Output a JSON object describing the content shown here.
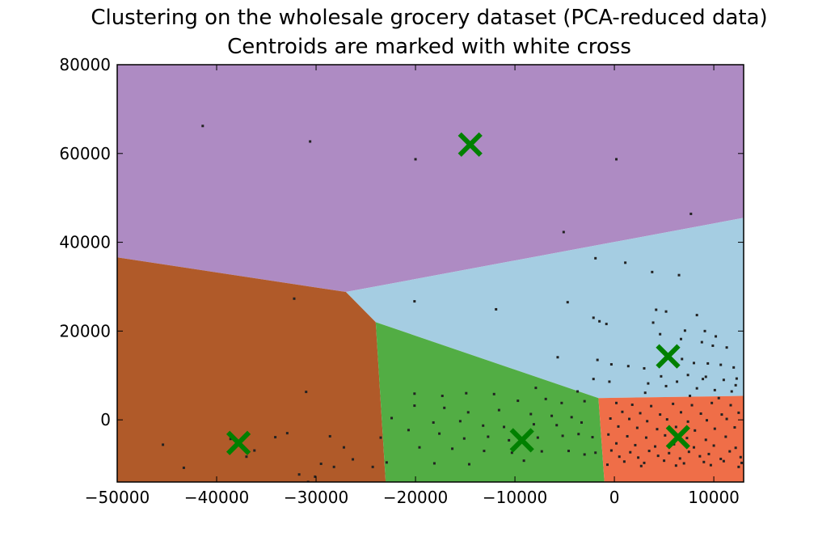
{
  "chart_data": {
    "type": "scatter",
    "title": "Clustering on the wholesale grocery dataset (PCA-reduced data)",
    "subtitle": "Centroids are marked with white cross",
    "xlabel": "",
    "ylabel": "",
    "xlim": [
      -50000,
      13000
    ],
    "ylim": [
      -14000,
      80000
    ],
    "xticks": [
      -50000,
      -40000,
      -30000,
      -20000,
      -10000,
      0,
      10000
    ],
    "yticks": [
      0,
      20000,
      40000,
      60000,
      80000
    ],
    "grid": false,
    "legend": "none",
    "regions": [
      {
        "color": "#ae8bc3",
        "polygon": [
          [
            -50000,
            80000
          ],
          [
            13000,
            80000
          ],
          [
            13000,
            45500
          ],
          [
            -27000,
            28800
          ],
          [
            -50000,
            36600
          ]
        ]
      },
      {
        "color": "#a5cde2",
        "polygon": [
          [
            -27000,
            28800
          ],
          [
            13000,
            45500
          ],
          [
            13000,
            5400
          ],
          [
            -1600,
            4900
          ],
          [
            -24000,
            22000
          ]
        ]
      },
      {
        "color": "#b05a29",
        "polygon": [
          [
            -50000,
            36600
          ],
          [
            -27000,
            28800
          ],
          [
            -24000,
            22000
          ],
          [
            -23000,
            -14000
          ],
          [
            -50000,
            -14000
          ]
        ]
      },
      {
        "color": "#52ad44",
        "polygon": [
          [
            -24000,
            22000
          ],
          [
            -1600,
            4900
          ],
          [
            -1000,
            -14000
          ],
          [
            -23000,
            -14000
          ]
        ]
      },
      {
        "color": "#ef6e48",
        "polygon": [
          [
            -1600,
            4900
          ],
          [
            13000,
            5400
          ],
          [
            13000,
            -14000
          ],
          [
            -1000,
            -14000
          ]
        ]
      }
    ],
    "centroids": {
      "color": "#008000",
      "points": [
        [
          -14500,
          62000
        ],
        [
          -37800,
          -5200
        ],
        [
          -9300,
          -4600
        ],
        [
          5400,
          14300
        ],
        [
          6400,
          -3900
        ]
      ]
    },
    "points": [
      [
        -41400,
        66200
      ],
      [
        -30600,
        62700
      ],
      [
        -20000,
        58700
      ],
      [
        200,
        58700
      ],
      [
        7700,
        46400
      ],
      [
        -5100,
        42300
      ],
      [
        -1900,
        36400
      ],
      [
        1100,
        35400
      ],
      [
        3800,
        33300
      ],
      [
        6500,
        32600
      ],
      [
        -32200,
        27300
      ],
      [
        -20100,
        26700
      ],
      [
        -4700,
        26500
      ],
      [
        -11900,
        24900
      ],
      [
        4200,
        24800
      ],
      [
        5200,
        24400
      ],
      [
        8300,
        23600
      ],
      [
        -2100,
        23000
      ],
      [
        -1500,
        22200
      ],
      [
        -800,
        21600
      ],
      [
        3900,
        21900
      ],
      [
        7100,
        20100
      ],
      [
        9100,
        20000
      ],
      [
        10200,
        18800
      ],
      [
        -5700,
        14100
      ],
      [
        4600,
        19300
      ],
      [
        6700,
        18200
      ],
      [
        8800,
        17500
      ],
      [
        9900,
        16700
      ],
      [
        11300,
        16300
      ],
      [
        -1700,
        13500
      ],
      [
        -300,
        12500
      ],
      [
        1400,
        12100
      ],
      [
        3000,
        11600
      ],
      [
        6800,
        13700
      ],
      [
        8000,
        12800
      ],
      [
        9400,
        12700
      ],
      [
        10700,
        12400
      ],
      [
        12000,
        11800
      ],
      [
        7400,
        10100
      ],
      [
        9200,
        9700
      ],
      [
        11000,
        9000
      ],
      [
        12300,
        9300
      ],
      [
        -2100,
        9200
      ],
      [
        -500,
        8600
      ],
      [
        3400,
        8200
      ],
      [
        5200,
        7600
      ],
      [
        8300,
        7100
      ],
      [
        10100,
        6700
      ],
      [
        11800,
        6400
      ],
      [
        -7900,
        7200
      ],
      [
        -3700,
        6400
      ],
      [
        -31000,
        6300
      ],
      [
        -20100,
        5900
      ],
      [
        -17300,
        5400
      ],
      [
        -14900,
        6000
      ],
      [
        -12100,
        5800
      ],
      [
        -9700,
        4300
      ],
      [
        -6900,
        4700
      ],
      [
        -5300,
        3800
      ],
      [
        -3000,
        4200
      ],
      [
        -20100,
        3200
      ],
      [
        -17100,
        2700
      ],
      [
        -14700,
        1700
      ],
      [
        -11600,
        2200
      ],
      [
        -8400,
        1300
      ],
      [
        -6300,
        900
      ],
      [
        -4300,
        600
      ],
      [
        -22400,
        400
      ],
      [
        -18200,
        -600
      ],
      [
        -15500,
        -300
      ],
      [
        -13200,
        -1300
      ],
      [
        -11100,
        -1600
      ],
      [
        -8100,
        -1000
      ],
      [
        -5800,
        -1200
      ],
      [
        -3300,
        -600
      ],
      [
        -20700,
        -2300
      ],
      [
        -17600,
        -3100
      ],
      [
        -15100,
        -4200
      ],
      [
        -12700,
        -3800
      ],
      [
        -10600,
        -4600
      ],
      [
        -7700,
        -4000
      ],
      [
        -5200,
        -3600
      ],
      [
        -3600,
        -3200
      ],
      [
        -2200,
        -3900
      ],
      [
        -19600,
        -6200
      ],
      [
        -16300,
        -6500
      ],
      [
        -13100,
        -7000
      ],
      [
        -10300,
        -7400
      ],
      [
        -7300,
        -7100
      ],
      [
        -4600,
        -7000
      ],
      [
        -3000,
        -7800
      ],
      [
        -1900,
        -7400
      ],
      [
        -18100,
        -9800
      ],
      [
        -14600,
        -10000
      ],
      [
        -9100,
        -9200
      ],
      [
        -45400,
        -5600
      ],
      [
        -38600,
        -4300
      ],
      [
        -36200,
        -6900
      ],
      [
        -34100,
        -3900
      ],
      [
        -32900,
        -3000
      ],
      [
        -28600,
        -3700
      ],
      [
        -27200,
        -6200
      ],
      [
        -29500,
        -9900
      ],
      [
        -28200,
        -10600
      ],
      [
        -26300,
        -8900
      ],
      [
        -24300,
        -10600
      ],
      [
        -23500,
        -4000
      ],
      [
        -43300,
        -10800
      ],
      [
        -37000,
        -8300
      ],
      [
        -31700,
        -12300
      ],
      [
        -30100,
        -12800
      ],
      [
        -30800,
        -14000
      ],
      [
        -22900,
        -9600
      ],
      [
        200,
        3800
      ],
      [
        1800,
        3400
      ],
      [
        3700,
        3100
      ],
      [
        5900,
        3600
      ],
      [
        7800,
        3300
      ],
      [
        9800,
        3800
      ],
      [
        11700,
        3300
      ],
      [
        800,
        1800
      ],
      [
        2600,
        1500
      ],
      [
        4600,
        1200
      ],
      [
        6700,
        1700
      ],
      [
        8700,
        1400
      ],
      [
        10800,
        1200
      ],
      [
        12500,
        1600
      ],
      [
        -400,
        300
      ],
      [
        1500,
        200
      ],
      [
        3300,
        -300
      ],
      [
        5300,
        100
      ],
      [
        7400,
        -400
      ],
      [
        9300,
        -100
      ],
      [
        11300,
        200
      ],
      [
        400,
        -1500
      ],
      [
        2300,
        -1800
      ],
      [
        4300,
        -2100
      ],
      [
        6200,
        -1600
      ],
      [
        8100,
        -2400
      ],
      [
        10100,
        -2000
      ],
      [
        12100,
        -1700
      ],
      [
        -600,
        -3300
      ],
      [
        1300,
        -3700
      ],
      [
        3200,
        -4000
      ],
      [
        5100,
        -3500
      ],
      [
        7300,
        -4100
      ],
      [
        9200,
        -4500
      ],
      [
        11200,
        -3800
      ],
      [
        200,
        -5300
      ],
      [
        2100,
        -5700
      ],
      [
        4100,
        -6000
      ],
      [
        6000,
        -5500
      ],
      [
        8000,
        -6200
      ],
      [
        10000,
        -5800
      ],
      [
        12200,
        -6300
      ],
      [
        -300,
        -6900
      ],
      [
        1600,
        -7300
      ],
      [
        3500,
        -7000
      ],
      [
        5500,
        -7500
      ],
      [
        7500,
        -7200
      ],
      [
        9500,
        -7700
      ],
      [
        11600,
        -7100
      ],
      [
        500,
        -8300
      ],
      [
        2400,
        -8500
      ],
      [
        4400,
        -8100
      ],
      [
        6600,
        -8700
      ],
      [
        8600,
        -8200
      ],
      [
        10700,
        -8800
      ],
      [
        12700,
        -8400
      ],
      [
        1000,
        -9400
      ],
      [
        3000,
        -9700
      ],
      [
        5000,
        -9200
      ],
      [
        7000,
        -9800
      ],
      [
        9000,
        -9500
      ],
      [
        11000,
        -9300
      ],
      [
        12800,
        -9700
      ],
      [
        -700,
        -10100
      ],
      [
        2700,
        -10400
      ],
      [
        6200,
        -10300
      ],
      [
        9700,
        -10200
      ],
      [
        12500,
        -10600
      ],
      [
        4700,
        9800
      ],
      [
        6300,
        8600
      ],
      [
        7600,
        5400
      ],
      [
        10500,
        4900
      ],
      [
        12200,
        7800
      ],
      [
        3100,
        6100
      ],
      [
        8900,
        9200
      ]
    ]
  }
}
